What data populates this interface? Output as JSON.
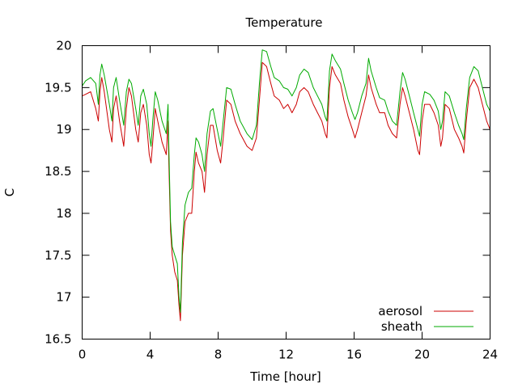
{
  "chart_data": {
    "type": "line",
    "title": "Temperature",
    "xlabel": "Time [hour]",
    "ylabel": "C",
    "xlim": [
      0,
      24
    ],
    "ylim": [
      16.5,
      20
    ],
    "x_ticks": [
      0,
      4,
      8,
      12,
      16,
      20,
      24
    ],
    "y_ticks": [
      16.5,
      17,
      17.5,
      18,
      18.5,
      19,
      19.5,
      20
    ],
    "y_tick_labels": [
      "16.5",
      "17",
      "17.5",
      "18",
      "18.5",
      "19",
      "19.5",
      "20"
    ],
    "grid": false,
    "legend_position": "bottom-right",
    "series": [
      {
        "name": "aerosol",
        "color": "#cc0000",
        "points": [
          [
            0.0,
            19.4
          ],
          [
            0.2,
            19.42
          ],
          [
            0.5,
            19.45
          ],
          [
            0.8,
            19.25
          ],
          [
            0.95,
            19.1
          ],
          [
            1.05,
            19.45
          ],
          [
            1.15,
            19.62
          ],
          [
            1.3,
            19.45
          ],
          [
            1.6,
            19.0
          ],
          [
            1.75,
            18.85
          ],
          [
            1.85,
            19.25
          ],
          [
            2.0,
            19.4
          ],
          [
            2.2,
            19.1
          ],
          [
            2.45,
            18.8
          ],
          [
            2.6,
            19.25
          ],
          [
            2.75,
            19.5
          ],
          [
            2.9,
            19.4
          ],
          [
            3.15,
            19.0
          ],
          [
            3.3,
            18.85
          ],
          [
            3.45,
            19.2
          ],
          [
            3.6,
            19.3
          ],
          [
            3.8,
            19.05
          ],
          [
            3.95,
            18.7
          ],
          [
            4.05,
            18.6
          ],
          [
            4.15,
            18.85
          ],
          [
            4.3,
            19.25
          ],
          [
            4.45,
            19.1
          ],
          [
            4.7,
            18.85
          ],
          [
            4.95,
            18.7
          ],
          [
            5.05,
            19.1
          ],
          [
            5.1,
            18.6
          ],
          [
            5.2,
            17.8
          ],
          [
            5.3,
            17.5
          ],
          [
            5.45,
            17.3
          ],
          [
            5.6,
            17.2
          ],
          [
            5.7,
            16.9
          ],
          [
            5.78,
            16.72
          ],
          [
            5.9,
            17.5
          ],
          [
            6.05,
            17.9
          ],
          [
            6.25,
            18.0
          ],
          [
            6.45,
            18.0
          ],
          [
            6.6,
            18.5
          ],
          [
            6.7,
            18.73
          ],
          [
            6.85,
            18.6
          ],
          [
            7.05,
            18.5
          ],
          [
            7.2,
            18.25
          ],
          [
            7.35,
            18.7
          ],
          [
            7.55,
            19.05
          ],
          [
            7.7,
            19.05
          ],
          [
            7.95,
            18.75
          ],
          [
            8.15,
            18.6
          ],
          [
            8.3,
            18.9
          ],
          [
            8.5,
            19.35
          ],
          [
            8.75,
            19.3
          ],
          [
            9.0,
            19.1
          ],
          [
            9.3,
            18.95
          ],
          [
            9.7,
            18.8
          ],
          [
            10.0,
            18.75
          ],
          [
            10.25,
            18.9
          ],
          [
            10.45,
            19.4
          ],
          [
            10.6,
            19.8
          ],
          [
            10.85,
            19.75
          ],
          [
            11.1,
            19.55
          ],
          [
            11.3,
            19.4
          ],
          [
            11.6,
            19.35
          ],
          [
            11.85,
            19.25
          ],
          [
            12.1,
            19.3
          ],
          [
            12.35,
            19.2
          ],
          [
            12.6,
            19.3
          ],
          [
            12.8,
            19.45
          ],
          [
            13.05,
            19.5
          ],
          [
            13.3,
            19.45
          ],
          [
            13.6,
            19.3
          ],
          [
            13.85,
            19.2
          ],
          [
            14.1,
            19.1
          ],
          [
            14.3,
            18.95
          ],
          [
            14.4,
            18.9
          ],
          [
            14.55,
            19.5
          ],
          [
            14.7,
            19.75
          ],
          [
            14.9,
            19.65
          ],
          [
            15.2,
            19.55
          ],
          [
            15.4,
            19.35
          ],
          [
            15.65,
            19.15
          ],
          [
            15.9,
            19.0
          ],
          [
            16.05,
            18.9
          ],
          [
            16.2,
            19.0
          ],
          [
            16.45,
            19.2
          ],
          [
            16.7,
            19.4
          ],
          [
            16.85,
            19.65
          ],
          [
            17.0,
            19.5
          ],
          [
            17.3,
            19.3
          ],
          [
            17.5,
            19.2
          ],
          [
            17.8,
            19.2
          ],
          [
            18.0,
            19.05
          ],
          [
            18.25,
            18.95
          ],
          [
            18.5,
            18.9
          ],
          [
            18.7,
            19.3
          ],
          [
            18.85,
            19.5
          ],
          [
            19.0,
            19.4
          ],
          [
            19.25,
            19.2
          ],
          [
            19.5,
            19.0
          ],
          [
            19.75,
            18.75
          ],
          [
            19.85,
            18.7
          ],
          [
            20.0,
            19.1
          ],
          [
            20.15,
            19.3
          ],
          [
            20.45,
            19.3
          ],
          [
            20.7,
            19.2
          ],
          [
            20.95,
            19.05
          ],
          [
            21.1,
            18.8
          ],
          [
            21.2,
            18.9
          ],
          [
            21.35,
            19.3
          ],
          [
            21.6,
            19.25
          ],
          [
            21.9,
            19.0
          ],
          [
            22.15,
            18.9
          ],
          [
            22.35,
            18.8
          ],
          [
            22.45,
            18.72
          ],
          [
            22.6,
            19.1
          ],
          [
            22.8,
            19.5
          ],
          [
            23.05,
            19.6
          ],
          [
            23.3,
            19.5
          ],
          [
            23.55,
            19.3
          ],
          [
            23.8,
            19.1
          ],
          [
            24.0,
            19.0
          ]
        ]
      },
      {
        "name": "sheath",
        "color": "#00aa00",
        "points": [
          [
            0.0,
            19.52
          ],
          [
            0.2,
            19.58
          ],
          [
            0.5,
            19.62
          ],
          [
            0.8,
            19.55
          ],
          [
            0.95,
            19.3
          ],
          [
            1.05,
            19.65
          ],
          [
            1.15,
            19.78
          ],
          [
            1.3,
            19.65
          ],
          [
            1.6,
            19.3
          ],
          [
            1.75,
            19.1
          ],
          [
            1.85,
            19.5
          ],
          [
            2.0,
            19.62
          ],
          [
            2.2,
            19.35
          ],
          [
            2.45,
            19.05
          ],
          [
            2.6,
            19.45
          ],
          [
            2.75,
            19.6
          ],
          [
            2.9,
            19.55
          ],
          [
            3.15,
            19.25
          ],
          [
            3.3,
            19.05
          ],
          [
            3.45,
            19.4
          ],
          [
            3.6,
            19.48
          ],
          [
            3.8,
            19.3
          ],
          [
            3.95,
            18.95
          ],
          [
            4.05,
            18.8
          ],
          [
            4.15,
            19.1
          ],
          [
            4.3,
            19.45
          ],
          [
            4.45,
            19.35
          ],
          [
            4.7,
            19.1
          ],
          [
            4.95,
            18.95
          ],
          [
            5.05,
            19.3
          ],
          [
            5.1,
            18.8
          ],
          [
            5.2,
            17.9
          ],
          [
            5.3,
            17.6
          ],
          [
            5.45,
            17.5
          ],
          [
            5.6,
            17.4
          ],
          [
            5.7,
            17.0
          ],
          [
            5.78,
            16.82
          ],
          [
            5.9,
            17.65
          ],
          [
            6.05,
            18.1
          ],
          [
            6.25,
            18.25
          ],
          [
            6.45,
            18.3
          ],
          [
            6.6,
            18.7
          ],
          [
            6.7,
            18.9
          ],
          [
            6.85,
            18.85
          ],
          [
            7.05,
            18.7
          ],
          [
            7.2,
            18.5
          ],
          [
            7.35,
            18.95
          ],
          [
            7.55,
            19.22
          ],
          [
            7.7,
            19.25
          ],
          [
            7.95,
            19.0
          ],
          [
            8.15,
            18.8
          ],
          [
            8.3,
            19.1
          ],
          [
            8.5,
            19.5
          ],
          [
            8.75,
            19.48
          ],
          [
            9.0,
            19.3
          ],
          [
            9.3,
            19.1
          ],
          [
            9.7,
            18.95
          ],
          [
            10.0,
            18.88
          ],
          [
            10.25,
            19.05
          ],
          [
            10.45,
            19.6
          ],
          [
            10.6,
            19.95
          ],
          [
            10.85,
            19.93
          ],
          [
            11.1,
            19.75
          ],
          [
            11.3,
            19.62
          ],
          [
            11.6,
            19.58
          ],
          [
            11.85,
            19.5
          ],
          [
            12.1,
            19.48
          ],
          [
            12.35,
            19.4
          ],
          [
            12.6,
            19.5
          ],
          [
            12.8,
            19.65
          ],
          [
            13.05,
            19.72
          ],
          [
            13.3,
            19.68
          ],
          [
            13.6,
            19.5
          ],
          [
            13.85,
            19.4
          ],
          [
            14.1,
            19.3
          ],
          [
            14.3,
            19.15
          ],
          [
            14.4,
            19.1
          ],
          [
            14.55,
            19.7
          ],
          [
            14.7,
            19.9
          ],
          [
            14.9,
            19.82
          ],
          [
            15.2,
            19.72
          ],
          [
            15.4,
            19.55
          ],
          [
            15.65,
            19.35
          ],
          [
            15.9,
            19.2
          ],
          [
            16.05,
            19.12
          ],
          [
            16.2,
            19.2
          ],
          [
            16.45,
            19.4
          ],
          [
            16.7,
            19.55
          ],
          [
            16.85,
            19.85
          ],
          [
            17.0,
            19.7
          ],
          [
            17.3,
            19.5
          ],
          [
            17.5,
            19.38
          ],
          [
            17.8,
            19.35
          ],
          [
            18.0,
            19.22
          ],
          [
            18.25,
            19.1
          ],
          [
            18.5,
            19.05
          ],
          [
            18.7,
            19.45
          ],
          [
            18.85,
            19.68
          ],
          [
            19.0,
            19.6
          ],
          [
            19.25,
            19.4
          ],
          [
            19.5,
            19.2
          ],
          [
            19.75,
            19.0
          ],
          [
            19.85,
            18.92
          ],
          [
            20.0,
            19.3
          ],
          [
            20.15,
            19.45
          ],
          [
            20.45,
            19.42
          ],
          [
            20.7,
            19.35
          ],
          [
            20.95,
            19.22
          ],
          [
            21.1,
            19.0
          ],
          [
            21.2,
            19.1
          ],
          [
            21.35,
            19.45
          ],
          [
            21.6,
            19.4
          ],
          [
            21.9,
            19.2
          ],
          [
            22.15,
            19.05
          ],
          [
            22.35,
            18.95
          ],
          [
            22.45,
            18.88
          ],
          [
            22.6,
            19.25
          ],
          [
            22.8,
            19.62
          ],
          [
            23.05,
            19.75
          ],
          [
            23.3,
            19.7
          ],
          [
            23.55,
            19.5
          ],
          [
            23.8,
            19.3
          ],
          [
            24.0,
            19.22
          ]
        ]
      }
    ]
  }
}
